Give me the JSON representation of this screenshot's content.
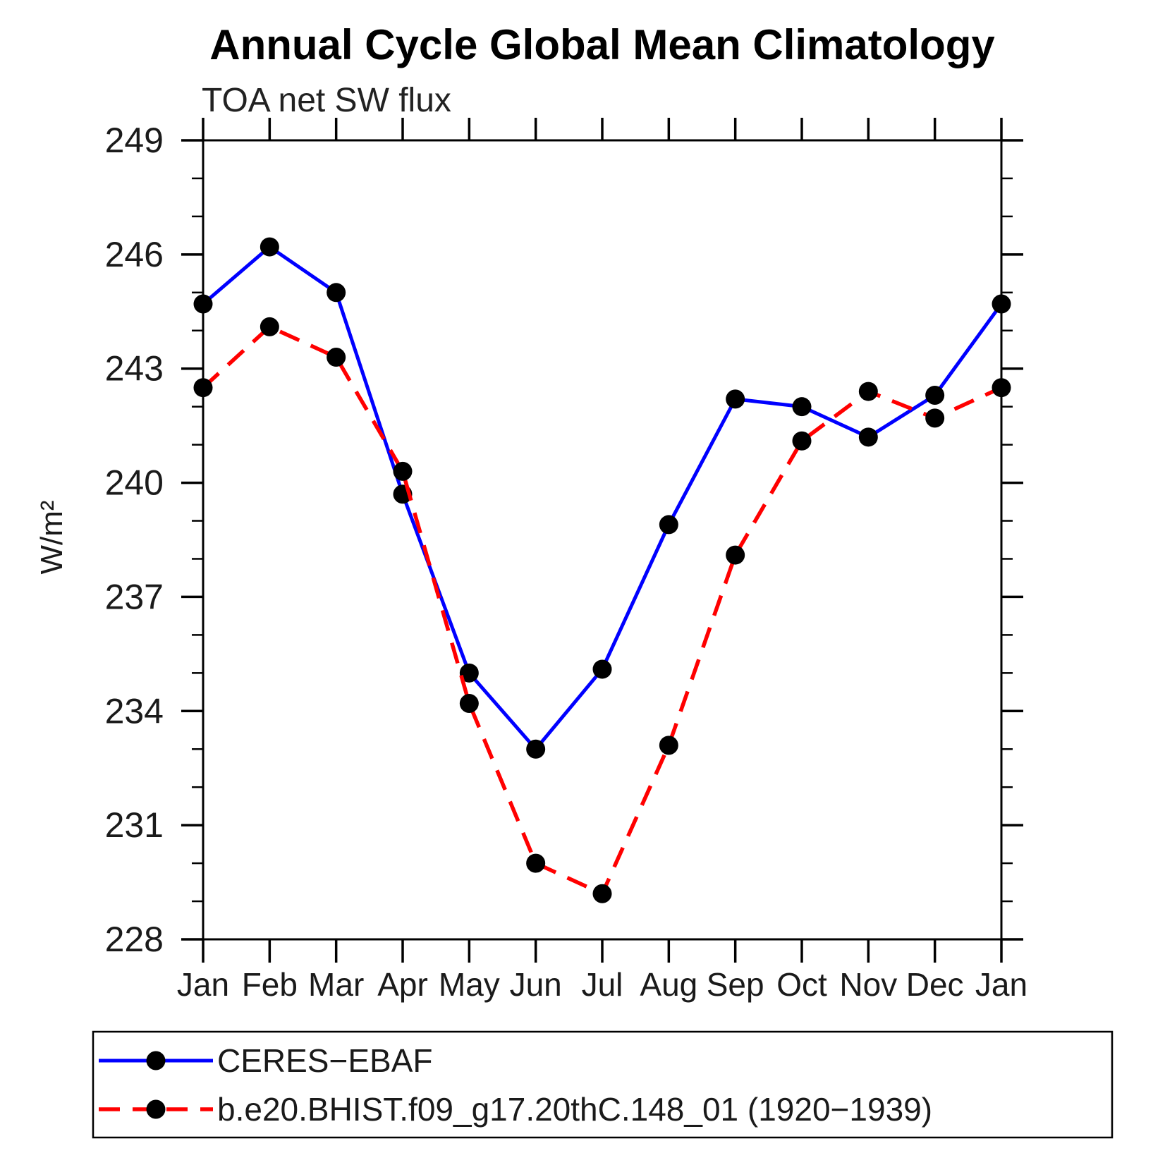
{
  "title": "Annual Cycle Global Mean Climatology",
  "chart_data": {
    "type": "line",
    "title": "Annual Cycle Global Mean Climatology",
    "subtitle": "TOA net SW flux",
    "xlabel": "",
    "ylabel": "W/m²",
    "categories": [
      "Jan",
      "Feb",
      "Mar",
      "Apr",
      "May",
      "Jun",
      "Jul",
      "Aug",
      "Sep",
      "Oct",
      "Nov",
      "Dec",
      "Jan"
    ],
    "series": [
      {
        "name": "CERES−EBAF",
        "color": "#0000ff",
        "line_style": "solid",
        "marker": "filled-circle",
        "marker_color": "#000000",
        "values": [
          244.7,
          246.2,
          245.0,
          239.7,
          235.0,
          233.0,
          235.1,
          238.9,
          242.2,
          242.0,
          241.2,
          242.3,
          244.7
        ]
      },
      {
        "name": "b.e20.BHIST.f09_g17.20thC.148_01 (1920−1939)",
        "color": "#ff0000",
        "line_style": "dashed",
        "marker": "filled-circle",
        "marker_color": "#000000",
        "values": [
          242.5,
          244.1,
          243.3,
          240.3,
          234.2,
          230.0,
          229.2,
          233.1,
          238.1,
          241.1,
          242.4,
          241.7,
          242.5
        ]
      }
    ],
    "ylim": [
      228,
      249
    ],
    "ytick_major_step": 3,
    "ytick_minor_step": 1,
    "ytick_labels": [
      "228",
      "231",
      "234",
      "237",
      "240",
      "243",
      "246",
      "249"
    ],
    "grid": "off",
    "legend_position": "bottom",
    "axis_color": "#000000"
  }
}
